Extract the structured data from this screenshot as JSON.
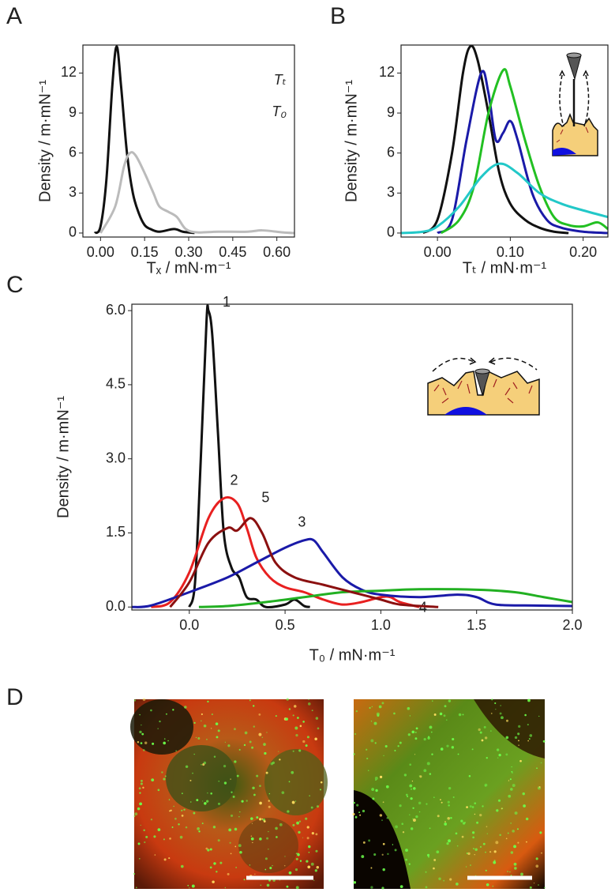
{
  "chart_data": [
    {
      "type": "line",
      "panel": "A",
      "x_label": "Tₓ / mN·m⁻¹",
      "y_label": "Density / m·mN⁻¹",
      "xlim": [
        -0.06,
        0.66
      ],
      "xticks": [
        {
          "value": 0,
          "label": "0.00"
        },
        {
          "value": 0.15,
          "label": "0.15"
        },
        {
          "value": 0.3,
          "label": "0.30"
        },
        {
          "value": 0.45,
          "label": "0.45"
        },
        {
          "value": 0.6,
          "label": "0.60"
        }
      ],
      "ylim": [
        -0.3,
        14.1
      ],
      "yticks": [
        0,
        3,
        6,
        9,
        12
      ],
      "legend": "upper right",
      "series": [
        {
          "name": "Tₜ",
          "color": "#111111",
          "x": [
            -0.02,
            0,
            0.02,
            0.04,
            0.055,
            0.07,
            0.09,
            0.11,
            0.13,
            0.15,
            0.17,
            0.2,
            0.25,
            0.28,
            0.32
          ],
          "values": [
            0,
            0.5,
            4,
            11,
            14,
            11,
            6,
            3,
            1.5,
            0.6,
            0.3,
            0.1,
            0.3,
            0.1,
            0
          ]
        },
        {
          "name": "T₀",
          "color": "#bbbbbb",
          "x": [
            0,
            0.05,
            0.08,
            0.1,
            0.12,
            0.15,
            0.18,
            0.2,
            0.23,
            0.26,
            0.29,
            0.33,
            0.4,
            0.5,
            0.55,
            0.62,
            0.66
          ],
          "values": [
            0,
            2,
            5,
            6,
            5.8,
            4.5,
            3,
            2,
            1.6,
            1.2,
            0.3,
            0.05,
            0.1,
            0.1,
            0.2,
            0.05,
            0
          ]
        }
      ]
    },
    {
      "type": "line",
      "panel": "B",
      "x_label": "Tₜ / mN·m⁻¹",
      "y_label": "Density / m·mN⁻¹",
      "xlim": [
        -0.05,
        0.234
      ],
      "xticks": [
        {
          "value": 0,
          "label": "0.00"
        },
        {
          "value": 0.1,
          "label": "0.10"
        },
        {
          "value": 0.2,
          "label": "0.20"
        }
      ],
      "ylim": [
        -0.3,
        14.1
      ],
      "yticks": [
        0,
        3,
        6,
        9,
        12
      ],
      "series": [
        {
          "color": "#111111",
          "x": [
            -0.02,
            0,
            0.02,
            0.035,
            0.045,
            0.055,
            0.07,
            0.085,
            0.1,
            0.12,
            0.14,
            0.16,
            0.18
          ],
          "values": [
            0,
            1,
            6,
            12,
            14,
            13,
            9,
            4.5,
            2.2,
            1,
            0.4,
            0.1,
            0
          ]
        },
        {
          "color": "#1a1aa8",
          "x": [
            0,
            0.02,
            0.04,
            0.06,
            0.07,
            0.08,
            0.09,
            0.1,
            0.11,
            0.13,
            0.15,
            0.17,
            0.2,
            0.234
          ],
          "values": [
            0,
            1,
            7,
            12,
            10.5,
            7,
            7.5,
            8.4,
            7,
            3,
            1,
            0.4,
            0.1,
            0
          ]
        },
        {
          "color": "#22c022",
          "x": [
            0.005,
            0.03,
            0.05,
            0.07,
            0.09,
            0.1,
            0.12,
            0.14,
            0.16,
            0.18,
            0.2,
            0.22,
            0.234
          ],
          "values": [
            0,
            1,
            3.5,
            9,
            12.2,
            11,
            7,
            3.5,
            1.2,
            0.6,
            0.5,
            0.8,
            0.3
          ]
        },
        {
          "color": "#22c8c8",
          "x": [
            -0.05,
            -0.02,
            0,
            0.03,
            0.06,
            0.085,
            0.11,
            0.14,
            0.17,
            0.2,
            0.234
          ],
          "values": [
            0,
            0.1,
            0.5,
            2,
            4.2,
            5.2,
            4.5,
            3,
            2.2,
            1.7,
            1.2
          ]
        }
      ]
    },
    {
      "type": "line",
      "panel": "C",
      "x_label": "T₀ / mN·m⁻¹",
      "y_label": "Density / m·mN⁻¹",
      "xlim": [
        -0.3,
        2.0
      ],
      "xticks": [
        {
          "value": 0,
          "label": "0.0"
        },
        {
          "value": 0.5,
          "label": "0.5"
        },
        {
          "value": 1,
          "label": "1.0"
        },
        {
          "value": 1.5,
          "label": "1.5"
        },
        {
          "value": 2,
          "label": "2.0"
        }
      ],
      "ylim": [
        -0.06,
        6.13
      ],
      "yticks": [
        {
          "value": 0,
          "label": "0.0"
        },
        {
          "value": 1.5,
          "label": "1.5"
        },
        {
          "value": 3,
          "label": "3.0"
        },
        {
          "value": 4.5,
          "label": "4.5"
        },
        {
          "value": 6,
          "label": "6.0"
        }
      ],
      "legend": "inline",
      "series": [
        {
          "name": "1",
          "color": "#111111",
          "x": [
            0,
            0.03,
            0.06,
            0.09,
            0.1,
            0.12,
            0.15,
            0.18,
            0.22,
            0.26,
            0.3,
            0.35,
            0.4,
            0.5,
            0.55,
            0.6,
            0.63
          ],
          "values": [
            0,
            0.5,
            3,
            5.8,
            6,
            5.5,
            3.5,
            1.5,
            0.8,
            0.6,
            0.2,
            0.15,
            0,
            0.05,
            0.15,
            0.02,
            0
          ]
        },
        {
          "name": "2",
          "color": "#e82020",
          "x": [
            -0.2,
            -0.1,
            0,
            0.1,
            0.18,
            0.25,
            0.3,
            0.35,
            0.42,
            0.5,
            0.6,
            0.7,
            0.8,
            0.9,
            1.0,
            1.05,
            1.1,
            1.2
          ],
          "values": [
            0,
            0.1,
            0.7,
            1.8,
            2.2,
            2.1,
            1.6,
            1.0,
            0.6,
            0.4,
            0.3,
            0.15,
            0.05,
            0.1,
            0.2,
            0.2,
            0.1,
            0
          ]
        },
        {
          "name": "3",
          "color": "#1a1aa8",
          "x": [
            -0.3,
            -0.2,
            0,
            0.2,
            0.35,
            0.5,
            0.6,
            0.65,
            0.7,
            0.8,
            0.9,
            1.0,
            1.2,
            1.4,
            1.5,
            1.6,
            1.8,
            2.0
          ],
          "values": [
            0,
            0.03,
            0.3,
            0.6,
            0.9,
            1.2,
            1.35,
            1.35,
            1.1,
            0.6,
            0.35,
            0.25,
            0.2,
            0.25,
            0.2,
            0.05,
            0.03,
            0.02
          ]
        },
        {
          "name": "4",
          "color": "#22b022",
          "x": [
            0.05,
            0.2,
            0.4,
            0.6,
            0.8,
            1.0,
            1.2,
            1.5,
            1.7,
            1.85,
            2.0
          ],
          "values": [
            0,
            0.02,
            0.1,
            0.2,
            0.3,
            0.33,
            0.36,
            0.35,
            0.3,
            0.2,
            0.1
          ]
        },
        {
          "name": "5",
          "color": "#8b1010",
          "x": [
            -0.1,
            0,
            0.1,
            0.2,
            0.25,
            0.32,
            0.38,
            0.45,
            0.55,
            0.7,
            0.85,
            1.0,
            1.1,
            1.3
          ],
          "values": [
            0,
            0.5,
            1.3,
            1.6,
            1.55,
            1.8,
            1.5,
            0.9,
            0.6,
            0.45,
            0.3,
            0.15,
            0.05,
            0
          ]
        }
      ]
    }
  ],
  "images": {
    "panel": "D"
  }
}
